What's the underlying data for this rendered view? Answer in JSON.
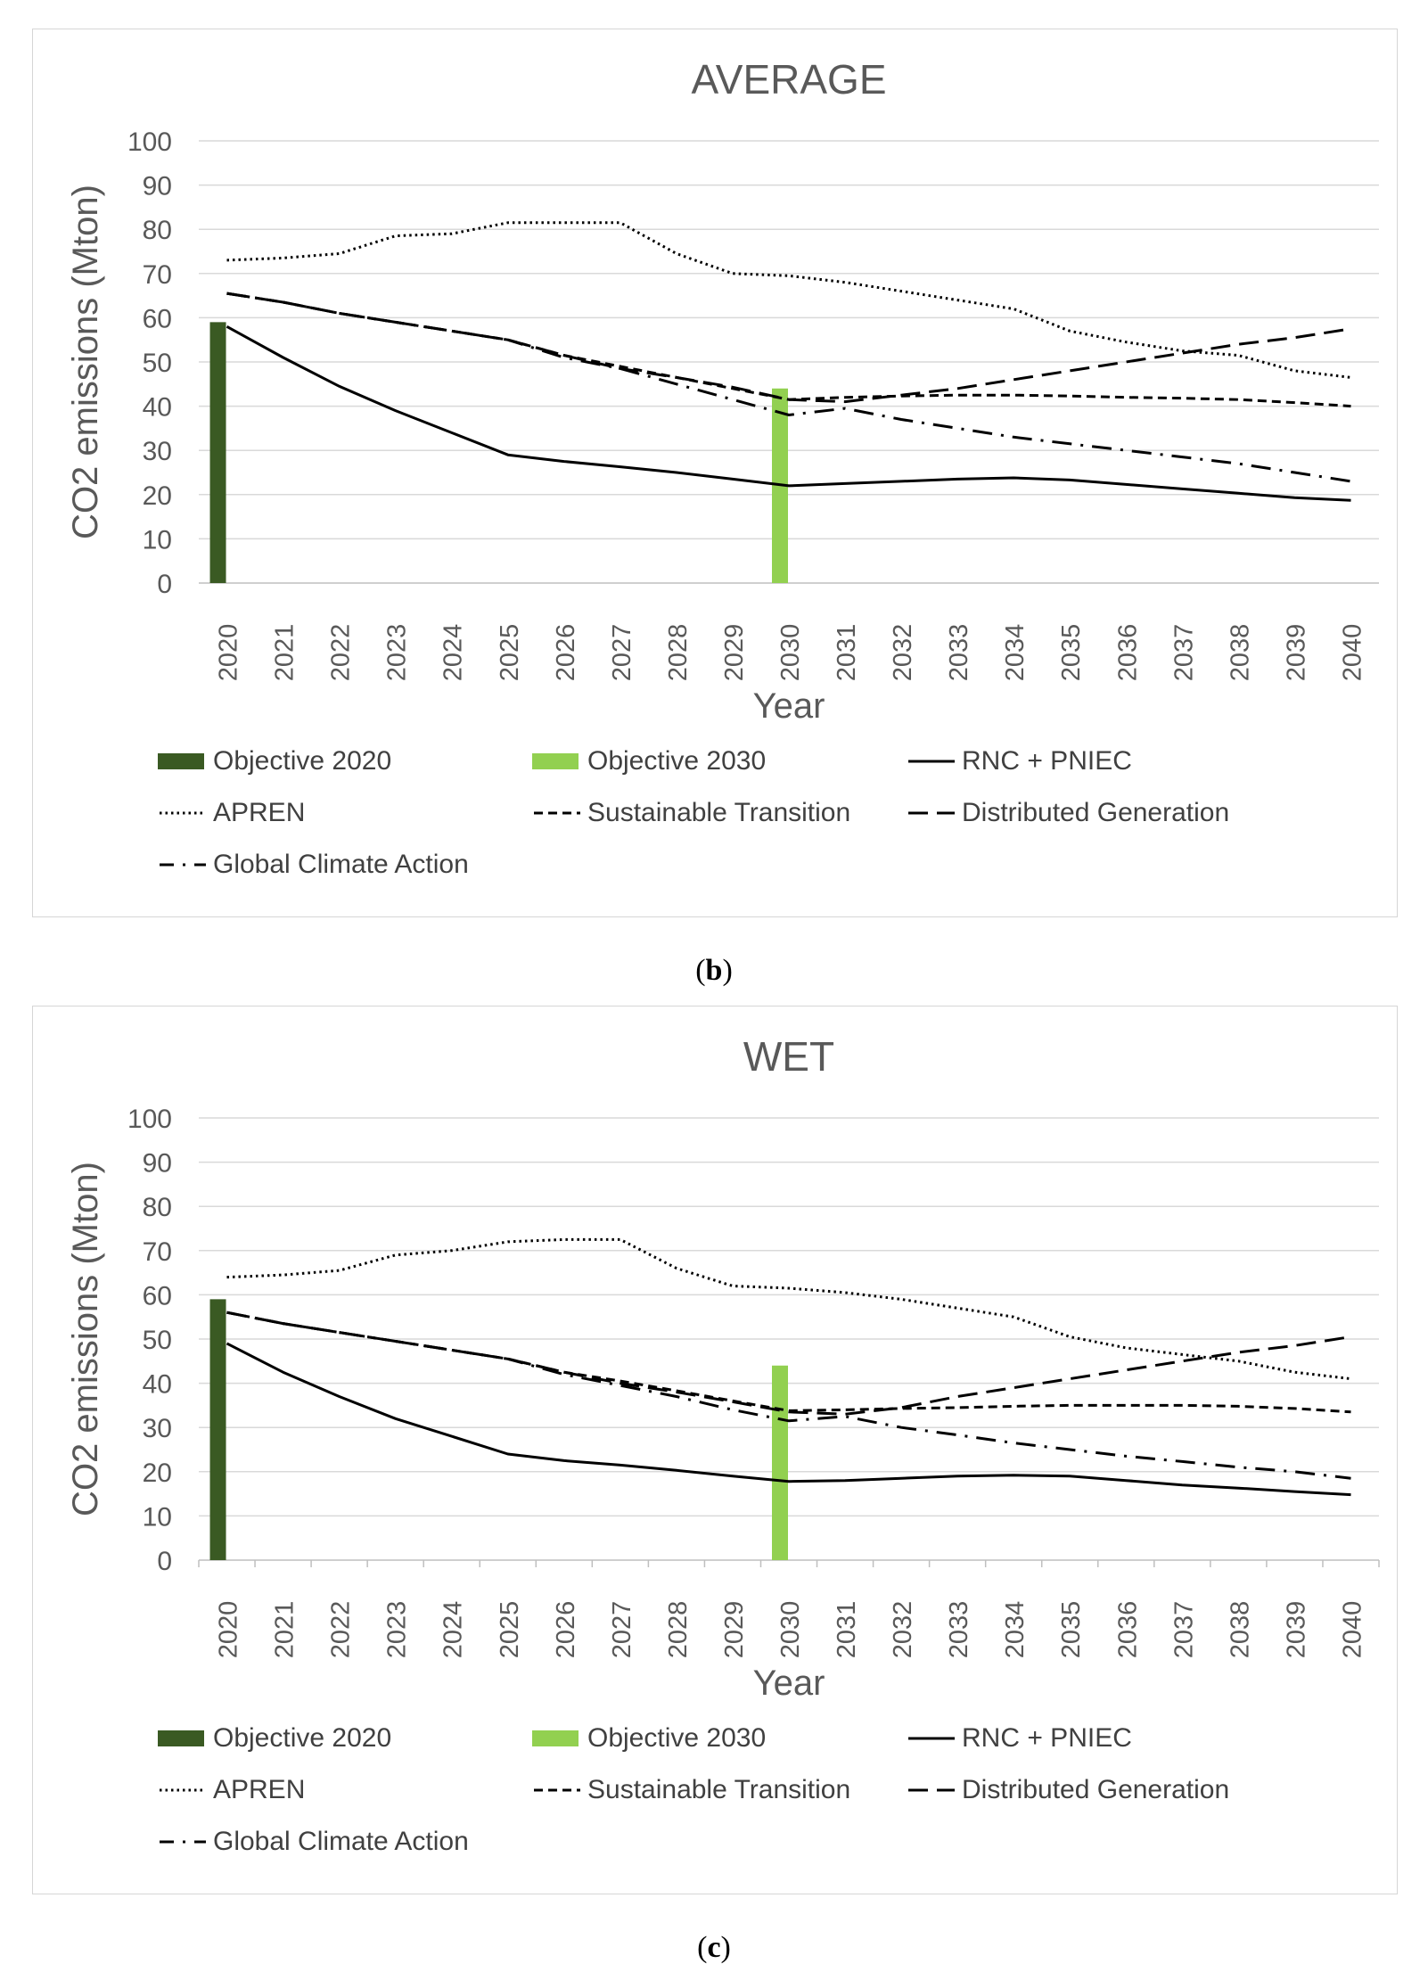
{
  "panels": [
    {
      "caption_letter": "b",
      "chart_data": {
        "type": "line",
        "title": "AVERAGE",
        "xlabel": "Year",
        "ylabel": "CO2 emissions (Mton)",
        "ylim": [
          0,
          100
        ],
        "yticks": [
          0,
          10,
          20,
          30,
          40,
          50,
          60,
          70,
          80,
          90,
          100
        ],
        "grid": true,
        "categories": [
          "2020",
          "2021",
          "2022",
          "2023",
          "2024",
          "2025",
          "2026",
          "2027",
          "2028",
          "2029",
          "2030",
          "2031",
          "2032",
          "2033",
          "2034",
          "2035",
          "2036",
          "2037",
          "2038",
          "2039",
          "2040"
        ],
        "bars": [
          {
            "name": "Objective 2020",
            "category": "2020",
            "value": 59,
            "color": "#3a5a23"
          },
          {
            "name": "Objective 2030",
            "category": "2030",
            "value": 44,
            "color": "#92d050"
          }
        ],
        "series": [
          {
            "name": "RNC + PNIEC",
            "style": "solid",
            "values": [
              58,
              51,
              44.5,
              39,
              34,
              29,
              27.5,
              26.3,
              25,
              23.5,
              22,
              22.5,
              23,
              23.5,
              23.8,
              23.3,
              22.3,
              21.3,
              20.3,
              19.3,
              18.7
            ]
          },
          {
            "name": "APREN",
            "style": "dotted",
            "values": [
              73,
              73.5,
              74.5,
              78.5,
              79,
              81.5,
              81.5,
              81.5,
              74.5,
              70,
              69.5,
              68,
              66,
              64,
              62,
              57,
              54.5,
              52.5,
              51.5,
              48,
              46.5
            ]
          },
          {
            "name": "Sustainable Transition",
            "style": "short-dash",
            "values": [
              65.5,
              63.5,
              61,
              59,
              57,
              55,
              51.5,
              49,
              46.5,
              44,
              41.5,
              42,
              42.3,
              42.5,
              42.5,
              42.3,
              42,
              41.8,
              41.5,
              40.8,
              40
            ]
          },
          {
            "name": "Distributed Generation",
            "style": "long-dash",
            "values": [
              65.5,
              63.5,
              61,
              59,
              57,
              55,
              51.5,
              48.5,
              46.5,
              44.3,
              41.5,
              41,
              42.5,
              44,
              46,
              48,
              50,
              52,
              54,
              55.5,
              57.5
            ]
          },
          {
            "name": "Global Climate Action",
            "style": "dash-dot",
            "values": [
              65.5,
              63.5,
              61,
              59,
              57,
              55,
              51,
              48.5,
              45,
              41.5,
              38,
              39.5,
              37,
              35,
              33,
              31.5,
              30,
              28.5,
              27,
              25,
              23
            ]
          }
        ]
      }
    },
    {
      "caption_letter": "c",
      "chart_data": {
        "type": "line",
        "title": "WET",
        "xlabel": "Year",
        "ylabel": "CO2 emissions (Mton)",
        "ylim": [
          0,
          100
        ],
        "yticks": [
          0,
          10,
          20,
          30,
          40,
          50,
          60,
          70,
          80,
          90,
          100
        ],
        "grid": true,
        "categories": [
          "2020",
          "2021",
          "2022",
          "2023",
          "2024",
          "2025",
          "2026",
          "2027",
          "2028",
          "2029",
          "2030",
          "2031",
          "2032",
          "2033",
          "2034",
          "2035",
          "2036",
          "2037",
          "2038",
          "2039",
          "2040"
        ],
        "bars": [
          {
            "name": "Objective 2020",
            "category": "2020",
            "value": 59,
            "color": "#3a5a23"
          },
          {
            "name": "Objective 2030",
            "category": "2030",
            "value": 44,
            "color": "#92d050"
          }
        ],
        "series": [
          {
            "name": "RNC + PNIEC",
            "style": "solid",
            "values": [
              49,
              42.5,
              37,
              32,
              28,
              24,
              22.5,
              21.5,
              20.3,
              19,
              17.8,
              18,
              18.5,
              19,
              19.2,
              19,
              18,
              17,
              16.3,
              15.5,
              14.8
            ]
          },
          {
            "name": "APREN",
            "style": "dotted",
            "values": [
              64,
              64.5,
              65.5,
              69,
              70,
              72,
              72.5,
              72.5,
              66,
              62,
              61.5,
              60.5,
              59,
              57,
              55,
              50.5,
              48,
              46.5,
              45,
              42.5,
              41
            ]
          },
          {
            "name": "Sustainable Transition",
            "style": "short-dash",
            "values": [
              56,
              53.5,
              51.5,
              49.5,
              47.5,
              45.5,
              42.5,
              40.5,
              38.3,
              36,
              33.8,
              34,
              34.3,
              34.5,
              34.8,
              35,
              35,
              35,
              34.8,
              34.3,
              33.5
            ]
          },
          {
            "name": "Distributed Generation",
            "style": "long-dash",
            "values": [
              56,
              53.5,
              51.5,
              49.5,
              47.5,
              45.5,
              42.5,
              40,
              38,
              35.8,
              33.5,
              33,
              34.5,
              37,
              39,
              41,
              43,
              45,
              47,
              48.5,
              50.5
            ]
          },
          {
            "name": "Global Climate Action",
            "style": "dash-dot",
            "values": [
              56,
              53.5,
              51.5,
              49.5,
              47.5,
              45.5,
              42,
              39.5,
              37,
              34,
              31.5,
              32.5,
              30,
              28.3,
              26.5,
              25,
              23.5,
              22.3,
              21,
              20,
              18.5
            ]
          }
        ]
      }
    }
  ],
  "legend": [
    {
      "label": "Objective 2020",
      "style": "bar",
      "color": "#3a5a23"
    },
    {
      "label": "Objective 2030",
      "style": "bar",
      "color": "#92d050"
    },
    {
      "label": "RNC + PNIEC",
      "style": "solid"
    },
    {
      "label": "APREN",
      "style": "dotted"
    },
    {
      "label": "Sustainable Transition",
      "style": "short-dash"
    },
    {
      "label": "Distributed Generation",
      "style": "long-dash"
    },
    {
      "label": "Global Climate Action",
      "style": "dash-dot"
    }
  ]
}
